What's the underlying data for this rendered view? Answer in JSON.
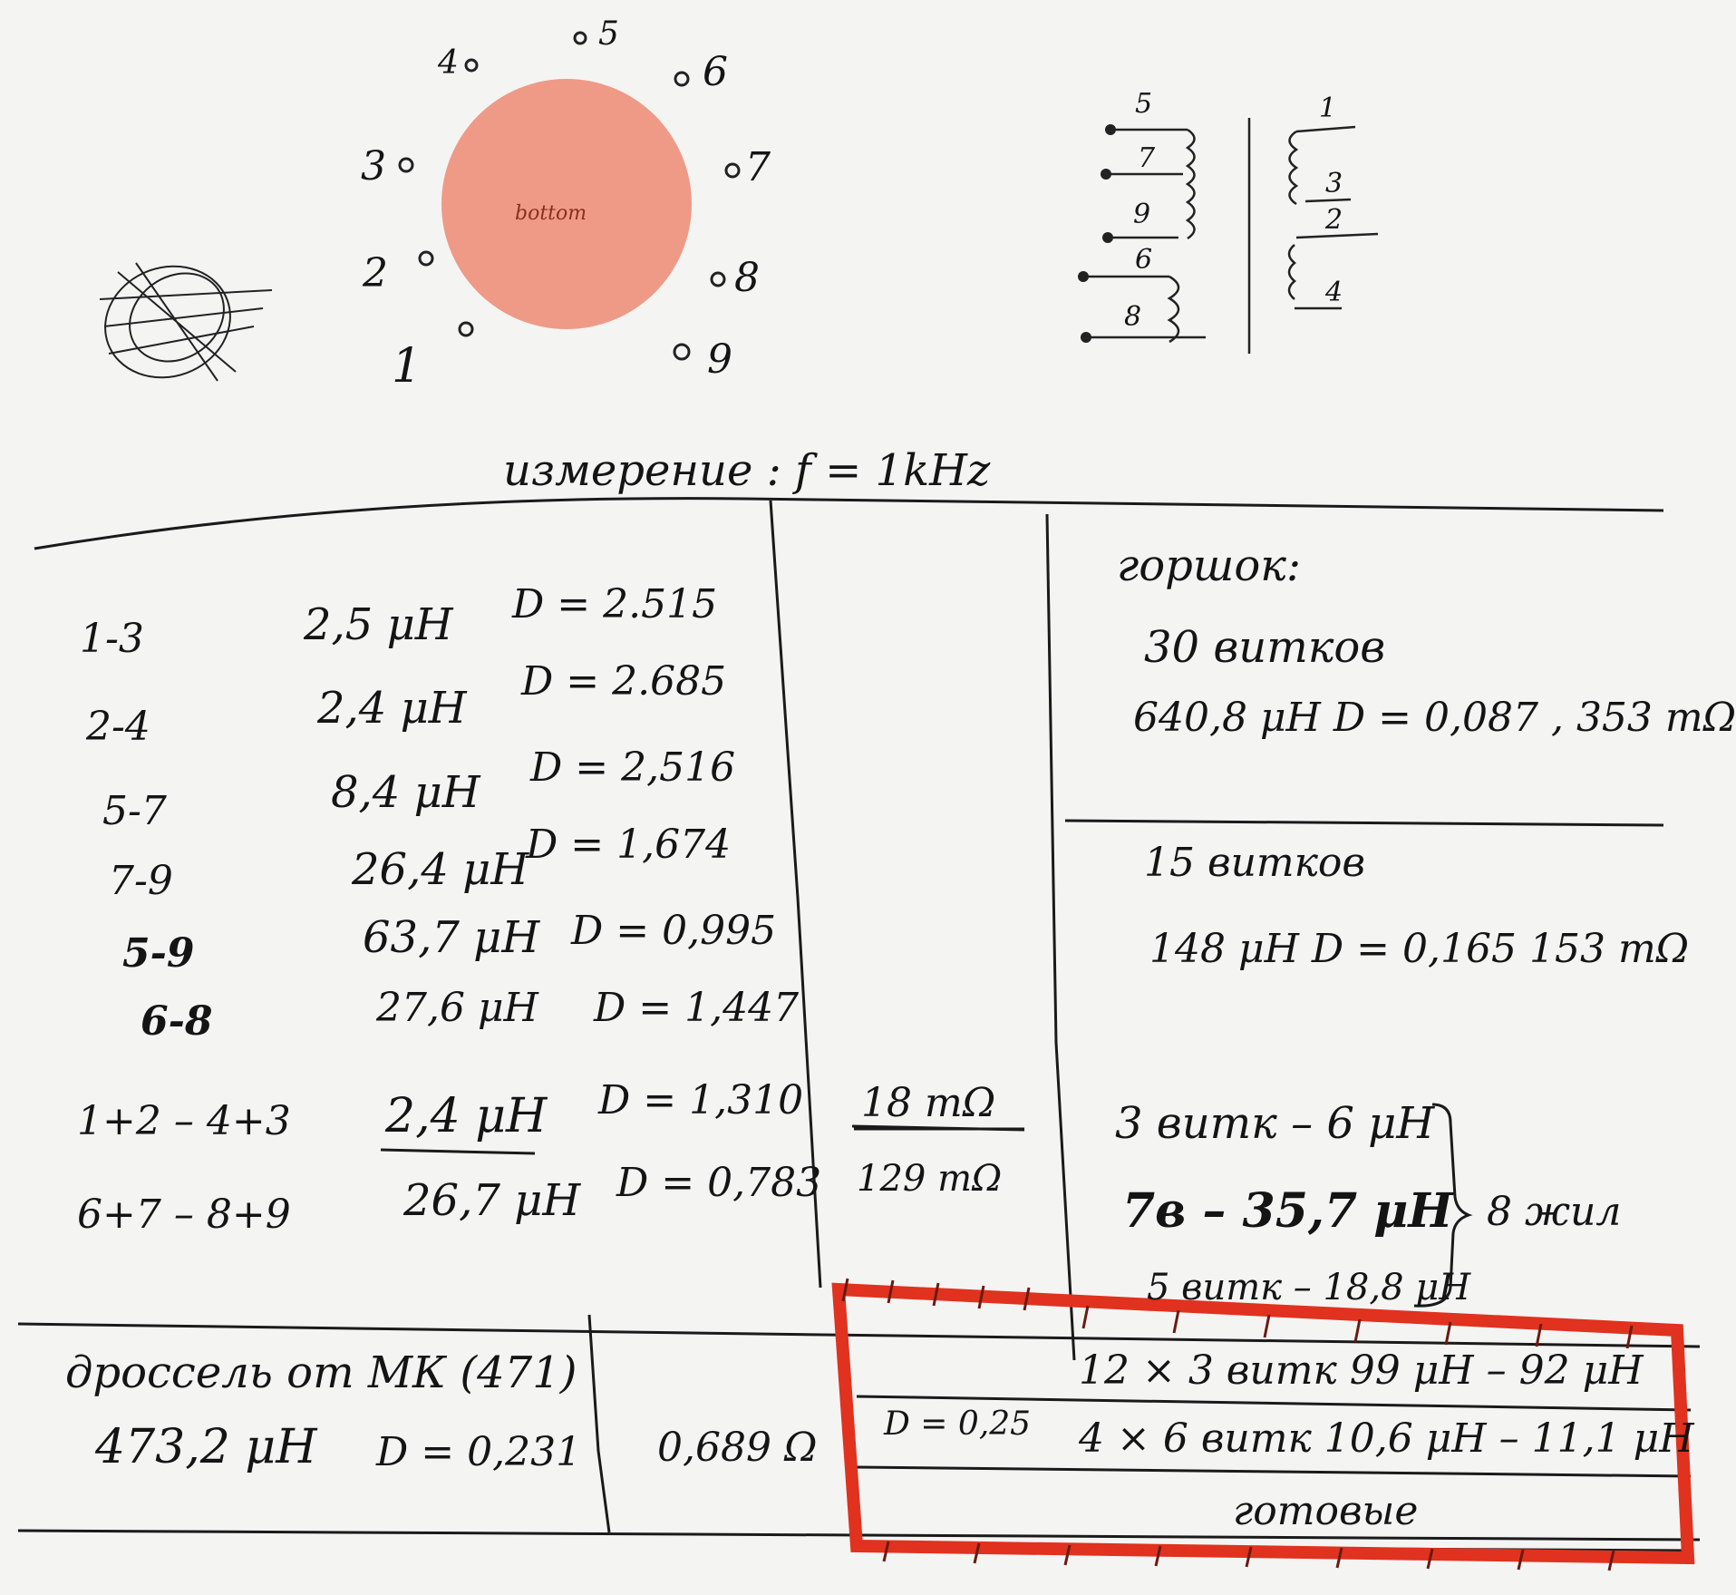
{
  "pinout": {
    "center_label": "bottom",
    "center_color": "#ef9a86",
    "pins": [
      "1",
      "2",
      "3",
      "4",
      "5",
      "6",
      "7",
      "8",
      "9"
    ]
  },
  "winding_schematic": {
    "left_labels": [
      "5",
      "7",
      "9",
      "6",
      "8"
    ],
    "right_labels": [
      "1",
      "3",
      "2",
      "4"
    ]
  },
  "heading": "измерение : f = 1kHz",
  "measurements": [
    {
      "pins": "1-3",
      "inductance": "2,5 μH",
      "d": "D = 2.515"
    },
    {
      "pins": "2-4",
      "inductance": "2,4 μH",
      "d": "D = 2.685"
    },
    {
      "pins": "5-7",
      "inductance": "8,4 μH",
      "d": "D = 2,516"
    },
    {
      "pins": "7-9",
      "inductance": "26,4 μH",
      "d": "D = 1,674"
    },
    {
      "pins": "5-9",
      "inductance": "63,7 μH",
      "d": "D = 0,995"
    },
    {
      "pins": "6-8",
      "inductance": "27,6 μH",
      "d": "D = 1,447"
    }
  ],
  "combined": [
    {
      "pins": "1+2 – 4+3",
      "inductance": "2,4 μH",
      "d": "D = 1,310",
      "resistance": "18 mΩ"
    },
    {
      "pins": "6+7 – 8+9",
      "inductance": "26,7 μH",
      "d": "D = 0,783",
      "resistance": "129 mΩ"
    }
  ],
  "pot_core": {
    "title": "горшок:",
    "turns_30": "30 витков",
    "value_30": "640,8 μH  D = 0,087 , 353 mΩ",
    "turns_15": "15 витков",
    "value_15": "148 μH   D = 0,165   153 mΩ",
    "line_3": "3 витк – 6 μH",
    "line_7": "7в – 35,7 μH",
    "line_5": "5 витк – 18,8 μH",
    "bracket_note": "8 жил"
  },
  "choke": {
    "title": "дроссель от МК (471)",
    "inductance": "473,2 μH",
    "d": "D = 0,231",
    "resistance": "0,689 Ω"
  },
  "ready": {
    "d_value": "D = 0,25",
    "row1": "12 × 3 витк   99 μH – 92 μH",
    "row2": "4 × 6 витк   10,6 μH – 11,1 μH",
    "label": "готовые",
    "frame_color": "#e0321e"
  }
}
